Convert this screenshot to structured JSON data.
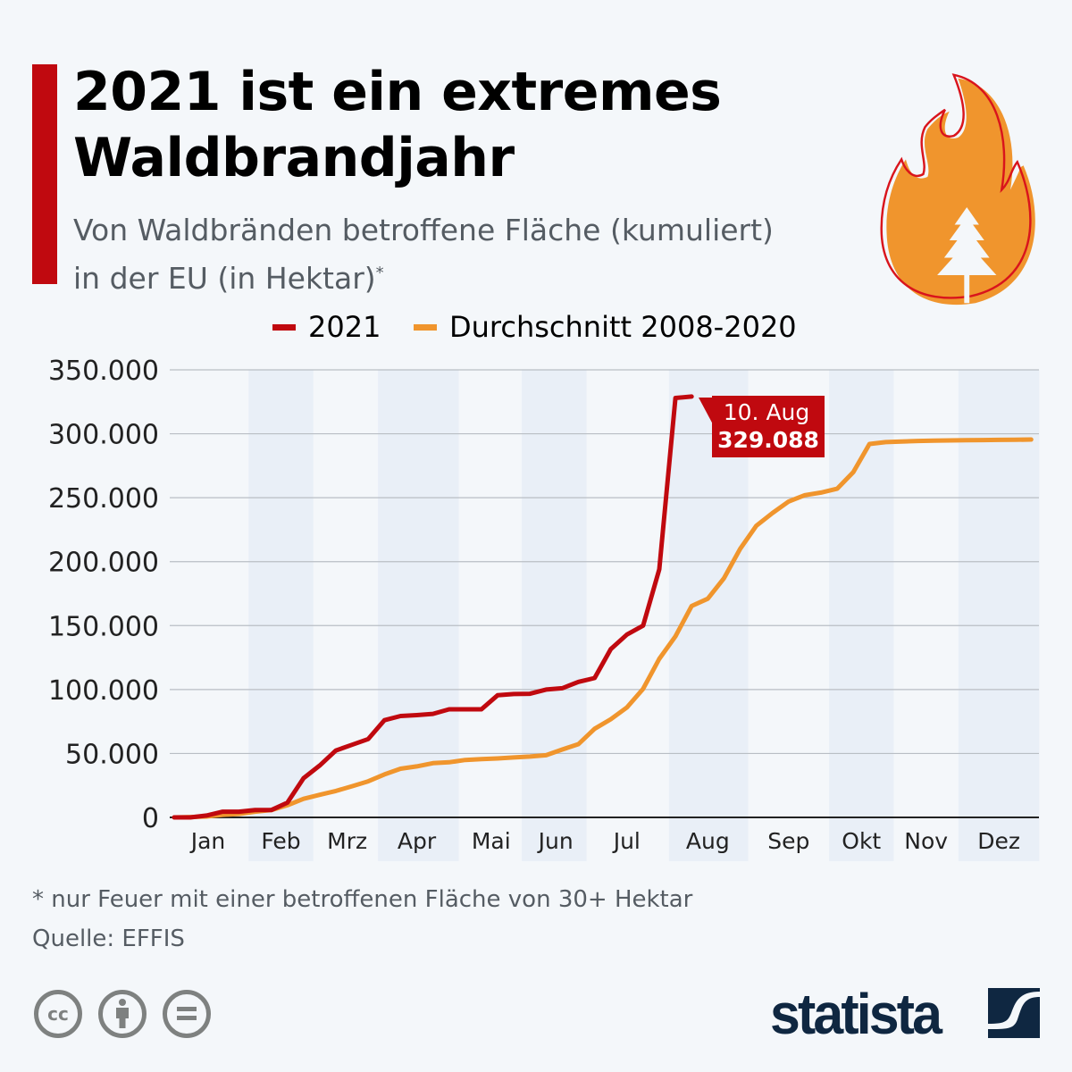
{
  "header": {
    "title_line1": "2021 ist ein extremes",
    "title_line2": "Waldbrandjahr",
    "subtitle_line1": "Von Waldbränden betroffene Fläche (kumuliert)",
    "subtitle_line2": "in der EU (in Hektar)",
    "subtitle_mark": "*",
    "icon": "flame-tree-icon"
  },
  "colors": {
    "accent": "#c0090f",
    "series_2021": "#c0090f",
    "series_avg": "#f0952d",
    "band": "#e9eff7"
  },
  "chart_data": {
    "type": "line",
    "title": "2021 ist ein extremes Waldbrandjahr",
    "xlabel": "",
    "ylabel": "Hektar",
    "ylim": [
      0,
      350000
    ],
    "yticks": [
      "0",
      "50.000",
      "100.000",
      "150.000",
      "200.000",
      "250.000",
      "300.000",
      "350.000"
    ],
    "ytick_values": [
      0,
      50000,
      100000,
      150000,
      200000,
      250000,
      300000,
      350000
    ],
    "months": [
      "Jan",
      "Feb",
      "Mrz",
      "Apr",
      "Mai",
      "Jun",
      "Jul",
      "Aug",
      "Sep",
      "Okt",
      "Nov",
      "Dez"
    ],
    "x_unit": "week",
    "legend_position": "top-center",
    "grid": true,
    "series": [
      {
        "name": "2021",
        "color": "#c0090f",
        "values": [
          0,
          0,
          1500,
          4500,
          4500,
          5700,
          5700,
          11500,
          30700,
          40600,
          52300,
          56800,
          61300,
          76000,
          79300,
          80000,
          81000,
          84500,
          84500,
          84500,
          95500,
          96500,
          96700,
          100000,
          101000,
          106000,
          109000,
          131600,
          143000,
          150000,
          194000,
          328000,
          329088
        ]
      },
      {
        "name": "Durchschnitt 2008-2020",
        "color": "#f0952d",
        "values": [
          0,
          300,
          700,
          2000,
          2700,
          4500,
          5700,
          9500,
          14500,
          17700,
          20700,
          24400,
          28200,
          33600,
          38100,
          39900,
          42400,
          43100,
          44900,
          45600,
          46100,
          46900,
          47600,
          48600,
          53100,
          57300,
          69300,
          76800,
          86000,
          100500,
          124000,
          141600,
          165300,
          171000,
          187000,
          210000,
          228000,
          238000,
          247000,
          252000,
          254000,
          257000,
          270000,
          292000,
          293500,
          294000,
          294400,
          294600,
          294800,
          295000,
          295100,
          295200,
          295300,
          295500
        ]
      }
    ],
    "annotation": {
      "date": "10. Aug",
      "value": "329.088"
    }
  },
  "footer": {
    "note": "* nur Feuer mit einer betroffenen Fläche von 30+ Hektar",
    "source": "Quelle: EFFIS",
    "license_icons": [
      "cc-icon",
      "attribution-icon",
      "no-derivatives-icon"
    ],
    "cc_label": "cc",
    "brand": "statista"
  }
}
